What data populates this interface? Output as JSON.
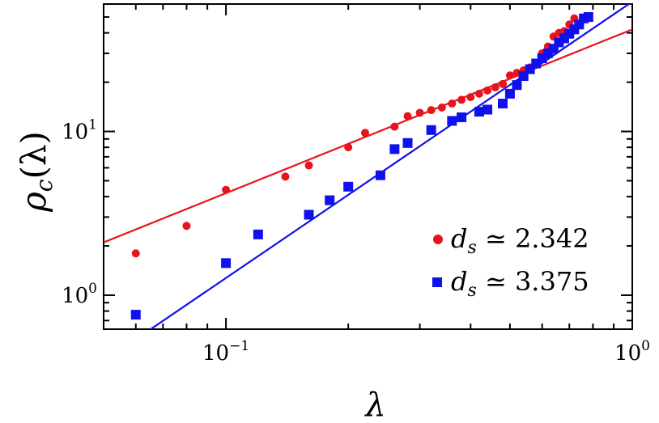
{
  "chart_data": {
    "type": "scatter",
    "xlabel": "λ",
    "ylabel": "ρc(λ)",
    "ylabel_main": "ρ",
    "ylabel_sub": "c",
    "ylabel_arg": "(λ)",
    "x_scale": "log",
    "y_scale": "log",
    "xlim": [
      0.05,
      1.0
    ],
    "ylim": [
      0.62,
      60
    ],
    "grid": false,
    "legend_position": "bottom-right",
    "x_ticks": [
      {
        "value": 0.1,
        "base": "10",
        "exp": "−1"
      },
      {
        "value": 1.0,
        "base": "10",
        "exp": "0"
      }
    ],
    "y_ticks": [
      {
        "value": 1,
        "base": "10",
        "exp": "0"
      },
      {
        "value": 10,
        "base": "10",
        "exp": "1"
      }
    ],
    "series": [
      {
        "legend_d": "d",
        "legend_sub": "s",
        "legend_rest": " ≃ 2.342",
        "color": "#e8141c",
        "marker": "circle",
        "points": [
          [
            0.06,
            1.8
          ],
          [
            0.08,
            2.65
          ],
          [
            0.1,
            4.4
          ],
          [
            0.14,
            5.3
          ],
          [
            0.16,
            6.2
          ],
          [
            0.2,
            8.0
          ],
          [
            0.22,
            9.8
          ],
          [
            0.26,
            10.7
          ],
          [
            0.28,
            12.4
          ],
          [
            0.3,
            13.0
          ],
          [
            0.32,
            13.5
          ],
          [
            0.34,
            14.0
          ],
          [
            0.36,
            14.8
          ],
          [
            0.38,
            15.6
          ],
          [
            0.4,
            16.2
          ],
          [
            0.42,
            17.0
          ],
          [
            0.44,
            17.8
          ],
          [
            0.46,
            18.6
          ],
          [
            0.48,
            19.5
          ],
          [
            0.5,
            22.0
          ],
          [
            0.52,
            22.8
          ],
          [
            0.54,
            23.6
          ],
          [
            0.56,
            24.6
          ],
          [
            0.58,
            25.6
          ],
          [
            0.6,
            30.0
          ],
          [
            0.62,
            33.0
          ],
          [
            0.64,
            38.0
          ],
          [
            0.66,
            40.0
          ],
          [
            0.68,
            41.0
          ],
          [
            0.7,
            45.0
          ],
          [
            0.72,
            49.0
          ]
        ],
        "fit": {
          "slope": 1.0,
          "intercept_at_1": 42.0
        }
      },
      {
        "legend_d": "d",
        "legend_sub": "s",
        "legend_rest": " ≃ 3.375",
        "color": "#1010ee",
        "marker": "square",
        "points": [
          [
            0.06,
            0.76
          ],
          [
            0.1,
            1.57
          ],
          [
            0.12,
            2.35
          ],
          [
            0.16,
            3.1
          ],
          [
            0.18,
            3.8
          ],
          [
            0.2,
            4.6
          ],
          [
            0.24,
            5.4
          ],
          [
            0.26,
            7.8
          ],
          [
            0.28,
            8.5
          ],
          [
            0.32,
            10.2
          ],
          [
            0.36,
            11.6
          ],
          [
            0.38,
            12.2
          ],
          [
            0.42,
            13.2
          ],
          [
            0.44,
            13.6
          ],
          [
            0.48,
            14.8
          ],
          [
            0.5,
            17.0
          ],
          [
            0.52,
            19.2
          ],
          [
            0.54,
            21.8
          ],
          [
            0.56,
            24.0
          ],
          [
            0.58,
            26.0
          ],
          [
            0.6,
            28.0
          ],
          [
            0.62,
            30.0
          ],
          [
            0.64,
            32.0
          ],
          [
            0.66,
            35.0
          ],
          [
            0.68,
            37.0
          ],
          [
            0.7,
            39.5
          ],
          [
            0.72,
            42.0
          ],
          [
            0.74,
            45.0
          ],
          [
            0.76,
            49.0
          ],
          [
            0.78,
            50.0
          ]
        ],
        "fit": {
          "slope": 1.6875,
          "intercept_at_1": 62.0
        }
      }
    ]
  }
}
